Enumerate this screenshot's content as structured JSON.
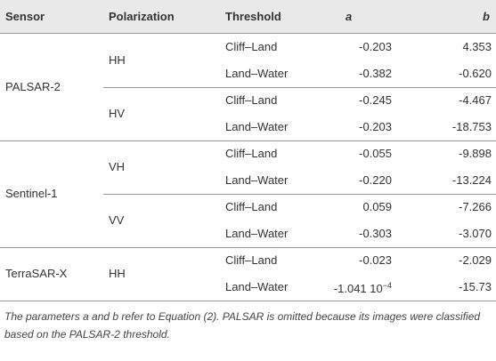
{
  "table": {
    "header": [
      "Sensor",
      "Polarization",
      "Threshold",
      "a",
      "b"
    ],
    "groups": [
      {
        "sensor": "PALSAR-2",
        "subgroups": [
          {
            "polarization": "HH",
            "rows": [
              [
                "Cliff–Land",
                "-0.203",
                "4.353"
              ],
              [
                "Land–Water",
                "-0.382",
                "-0.620"
              ]
            ]
          },
          {
            "polarization": "HV",
            "rows": [
              [
                "Cliff–Land",
                "-0.245",
                "-4.467"
              ],
              [
                "Land–Water",
                "-0.203",
                "-18.753"
              ]
            ]
          }
        ]
      },
      {
        "sensor": "Sentinel-1",
        "subgroups": [
          {
            "polarization": "VH",
            "rows": [
              [
                "Cliff–Land",
                "-0.055",
                "-9.898"
              ],
              [
                "Land–Water",
                "-0.220",
                "-13.224"
              ]
            ]
          },
          {
            "polarization": "VV",
            "rows": [
              [
                "Cliff–Land",
                "0.059",
                "-7.266"
              ],
              [
                "Land–Water",
                "-0.303",
                "-3.070"
              ]
            ]
          }
        ]
      },
      {
        "sensor": "TerraSAR-X",
        "subgroups": [
          {
            "polarization": "HH",
            "rows": [
              [
                "Cliff–Land",
                "-0.023",
                "-2.029"
              ],
              [
                "Land–Water",
                {
                  "text": "-1.041 10",
                  "sup": "−4"
                },
                "-15.73"
              ]
            ]
          }
        ]
      }
    ]
  },
  "footnote": "The parameters a and b refer to Equation (2). PALSAR is omitted because its images were classified based on the PALSAR-2 threshold."
}
